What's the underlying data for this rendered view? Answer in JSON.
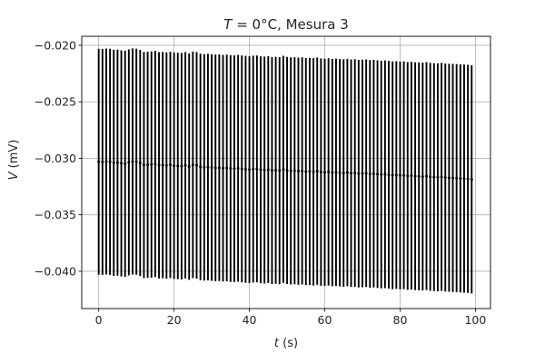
{
  "chart_data": {
    "type": "scatter",
    "title_var": "T",
    "title_rest": " = 0°C, Mesura 3",
    "xlabel_var": "t",
    "xlabel_unit": " (s)",
    "ylabel_var": "V",
    "ylabel_unit": " (mV)",
    "xlim": [
      -4.5,
      104
    ],
    "ylim": [
      -0.0433,
      -0.0192
    ],
    "x_ticks": [
      0,
      20,
      40,
      60,
      80,
      100
    ],
    "y_ticks": [
      -0.04,
      -0.035,
      -0.03,
      -0.025,
      -0.02
    ],
    "grid": true,
    "errorbar_color": "#000000",
    "marker_color": "#000000",
    "series": [
      {
        "t_start": 0,
        "t_step": 1,
        "count": 100,
        "v_start": -0.0303,
        "v_end": -0.0319,
        "err_start": 0.01,
        "err_end": 0.0101,
        "values": [
          -0.0303,
          -0.03032,
          -0.03029,
          -0.03031,
          -0.0304,
          -0.03038,
          -0.03045,
          -0.03048,
          -0.03036,
          -0.03028,
          -0.0303,
          -0.03042,
          -0.0306,
          -0.03058,
          -0.03055,
          -0.0305,
          -0.03062,
          -0.0306,
          -0.03064,
          -0.03058,
          -0.03066,
          -0.03068,
          -0.0307,
          -0.03062,
          -0.03074,
          -0.03058,
          -0.03062,
          -0.03076,
          -0.0308,
          -0.03078,
          -0.03082,
          -0.03085,
          -0.03084,
          -0.03088,
          -0.03086,
          -0.0309,
          -0.03092,
          -0.03088,
          -0.03094,
          -0.03098,
          -0.031,
          -0.03096,
          -0.03094,
          -0.03102,
          -0.03104,
          -0.031,
          -0.03108,
          -0.03106,
          -0.0311,
          -0.03098,
          -0.03108,
          -0.03112,
          -0.0311,
          -0.03114,
          -0.03112,
          -0.03118,
          -0.03116,
          -0.0312,
          -0.03114,
          -0.03122,
          -0.03124,
          -0.0312,
          -0.03126,
          -0.03124,
          -0.03128,
          -0.0313,
          -0.03126,
          -0.03132,
          -0.0313,
          -0.03136,
          -0.03134,
          -0.03132,
          -0.03138,
          -0.03136,
          -0.0314,
          -0.03144,
          -0.03142,
          -0.03146,
          -0.0315,
          -0.03148,
          -0.03152,
          -0.0315,
          -0.03156,
          -0.03154,
          -0.03158,
          -0.0316,
          -0.03162,
          -0.03158,
          -0.03164,
          -0.03166,
          -0.03168,
          -0.03164,
          -0.0317,
          -0.03172,
          -0.03174,
          -0.03176,
          -0.03178,
          -0.0318,
          -0.03182,
          -0.03186
        ]
      }
    ]
  }
}
